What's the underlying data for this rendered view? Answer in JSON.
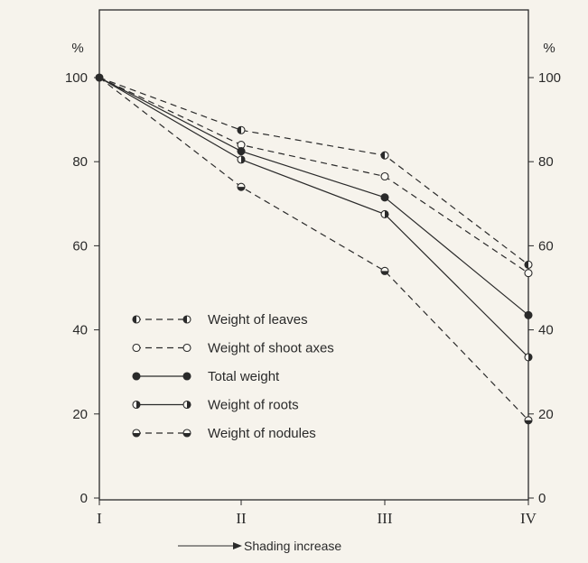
{
  "chart_data": {
    "type": "line",
    "categories": [
      "I",
      "II",
      "III",
      "IV"
    ],
    "ylim": [
      0,
      100
    ],
    "yticks": [
      0,
      20,
      40,
      60,
      80,
      100
    ],
    "y_unit_left": "%",
    "y_unit_right": "%",
    "legend_position": "center-left",
    "series": [
      {
        "name": "Weight of leaves",
        "values": [
          100,
          87.5,
          81.5,
          55.5
        ],
        "dash": "dashed",
        "marker": "half-left"
      },
      {
        "name": "Weight of shoot axes",
        "values": [
          100,
          84,
          76.5,
          53.5
        ],
        "dash": "dashed",
        "marker": "open"
      },
      {
        "name": "Total weight",
        "values": [
          100,
          82.5,
          71.5,
          43.5
        ],
        "dash": "solid",
        "marker": "filled"
      },
      {
        "name": "Weight of roots",
        "values": [
          100,
          80.5,
          67.5,
          33.5
        ],
        "dash": "solid",
        "marker": "half-right"
      },
      {
        "name": "Weight of nodules",
        "values": [
          100,
          74,
          54,
          18.5
        ],
        "dash": "dashed",
        "marker": "half-bottom"
      }
    ],
    "annotation": "Shading increase"
  }
}
